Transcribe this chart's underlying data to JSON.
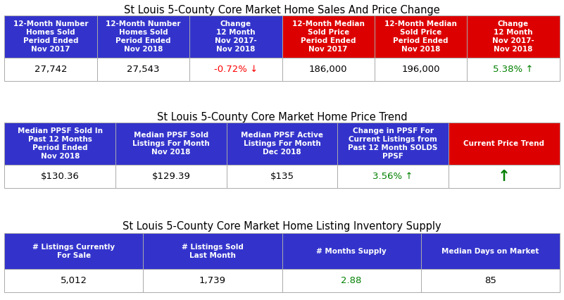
{
  "title1": "St Louis 5-County Core Market Home Sales And Price Change",
  "title2": "St Louis 5-County Core Market Home Price Trend",
  "title3": "St Louis 5-County Core Market Home Listing Inventory Supply",
  "table1_headers": [
    "12-Month Number\nHomes Sold\nPeriod Ended\nNov 2017",
    "12-Month Number\nHomes Sold\nPeriod Ended\nNov 2018",
    "Change\n12 Month\nNov 2017-\nNov 2018",
    "12-Month Median\nSold Price\nPeriod Ended\nNov 2017",
    "12-Month Median\nSold Price\nPeriod Ended\nNov 2018",
    "Change\n12 Month\nNov 2017-\nNov 2018"
  ],
  "table1_header_colors": [
    "#3333cc",
    "#3333cc",
    "#3333cc",
    "#dd0000",
    "#dd0000",
    "#dd0000"
  ],
  "table1_data": [
    "27,742",
    "27,543",
    "-0.72% ↓",
    "186,000",
    "196,000",
    "5.38% ↑"
  ],
  "table1_data_colors": [
    "black",
    "black",
    "red",
    "black",
    "black",
    "green"
  ],
  "table2_headers": [
    "Median PPSF Sold In\nPast 12 Months\nPeriod Ended\nNov 2018",
    "Median PPSF Sold\nListings For Month\nNov 2018",
    "Median PPSF Active\nListings For Month\nDec 2018",
    "Change in PPSF For\nCurrent Listings from\nPast 12 Month SOLDS\nPPSF",
    "Current Price Trend"
  ],
  "table2_header_colors": [
    "#3333cc",
    "#3333cc",
    "#3333cc",
    "#3333cc",
    "#dd0000"
  ],
  "table2_data": [
    "$130.36",
    "$129.39",
    "$135",
    "3.56% ↑",
    "↑"
  ],
  "table2_data_colors": [
    "black",
    "black",
    "black",
    "green",
    "green"
  ],
  "table3_headers": [
    "# Listings Currently\nFor Sale",
    "# Listings Sold\nLast Month",
    "# Months Supply",
    "Median Days on Market"
  ],
  "table3_header_colors": [
    "#3333cc",
    "#3333cc",
    "#3333cc",
    "#3333cc"
  ],
  "table3_data": [
    "5,012",
    "1,739",
    "2.88",
    "85"
  ],
  "table3_data_colors": [
    "black",
    "black",
    "green",
    "black"
  ],
  "bg_color": "white",
  "header_text_color": "white",
  "title_fontsize": 10.5,
  "header_fontsize": 7.5,
  "data_fontsize": 9.5,
  "border_color": "#aaaaaa"
}
